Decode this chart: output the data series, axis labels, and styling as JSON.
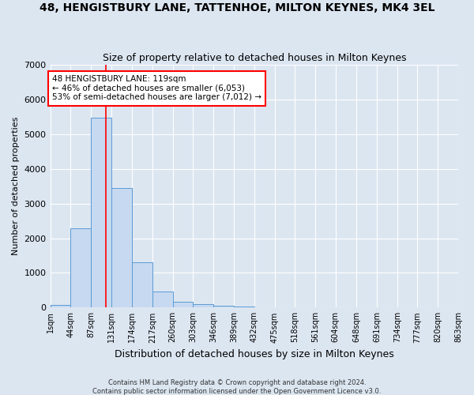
{
  "title": "48, HENGISTBURY LANE, TATTENHOE, MILTON KEYNES, MK4 3EL",
  "subtitle": "Size of property relative to detached houses in Milton Keynes",
  "xlabel": "Distribution of detached houses by size in Milton Keynes",
  "ylabel": "Number of detached properties",
  "footer_line1": "Contains HM Land Registry data © Crown copyright and database right 2024.",
  "footer_line2": "Contains public sector information licensed under the Open Government Licence v3.0.",
  "annotation_line1": "48 HENGISTBURY LANE: 119sqm",
  "annotation_line2": "← 46% of detached houses are smaller (6,053)",
  "annotation_line3": "53% of semi-detached houses are larger (7,012) →",
  "bar_edges": [
    1,
    44,
    87,
    131,
    174,
    217,
    260,
    303,
    346,
    389,
    432,
    475,
    518,
    561,
    604,
    648,
    691,
    734,
    777,
    820,
    863
  ],
  "bar_heights": [
    75,
    2280,
    5480,
    3450,
    1310,
    460,
    160,
    90,
    60,
    40,
    0,
    0,
    0,
    0,
    0,
    0,
    0,
    0,
    0,
    0
  ],
  "bar_color": "#c6d9f0",
  "bar_edge_color": "#5b9bd5",
  "red_line_x": 119,
  "ylim": [
    0,
    7000
  ],
  "yticks": [
    0,
    1000,
    2000,
    3000,
    4000,
    5000,
    6000,
    7000
  ],
  "background_color": "#dce6f1",
  "plot_bg_color": "#dce6f1",
  "grid_color": "#ffffff",
  "title_fontsize": 10,
  "subtitle_fontsize": 9,
  "tick_label_fontsize": 7,
  "ylabel_fontsize": 8,
  "xlabel_fontsize": 9,
  "footer_fontsize": 6,
  "annotation_fontsize": 7.5
}
